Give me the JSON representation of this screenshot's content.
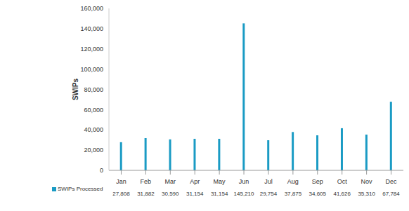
{
  "chart_data": {
    "type": "bar",
    "y_label": "SWIPs",
    "categories": [
      "Jan",
      "Feb",
      "Mar",
      "Apr",
      "May",
      "Jun",
      "Jul",
      "Aug",
      "Sep",
      "Oct",
      "Nov",
      "Dec"
    ],
    "series": [
      {
        "name": "SWIPs Processed",
        "color": "#1a9bc4",
        "values": [
          27808,
          31882,
          30590,
          31154,
          31154,
          145210,
          29754,
          37875,
          34605,
          41626,
          35310,
          67784
        ],
        "value_labels": [
          "27,808",
          "31,882",
          "30,590",
          "31,154",
          "31,154",
          "145,210",
          "29,754",
          "37,875",
          "34,605",
          "41,626",
          "35,310",
          "67,784"
        ]
      }
    ],
    "ylim": [
      0,
      160000
    ],
    "yticks": [
      0,
      {
        "value": 20000,
        "label": "20,000"
      },
      {
        "value": 40000,
        "label": "40,000"
      },
      {
        "value": 60000,
        "label": "60,000"
      },
      {
        "value": 80000,
        "label": "80,000"
      },
      {
        "value": 100000,
        "label": "100,000"
      },
      {
        "value": 120000,
        "label": "120,000"
      },
      {
        "value": 140000,
        "label": "140,000"
      },
      {
        "value": 160000,
        "label": "160,000"
      }
    ],
    "grid": false,
    "legend": "bottom-left"
  }
}
